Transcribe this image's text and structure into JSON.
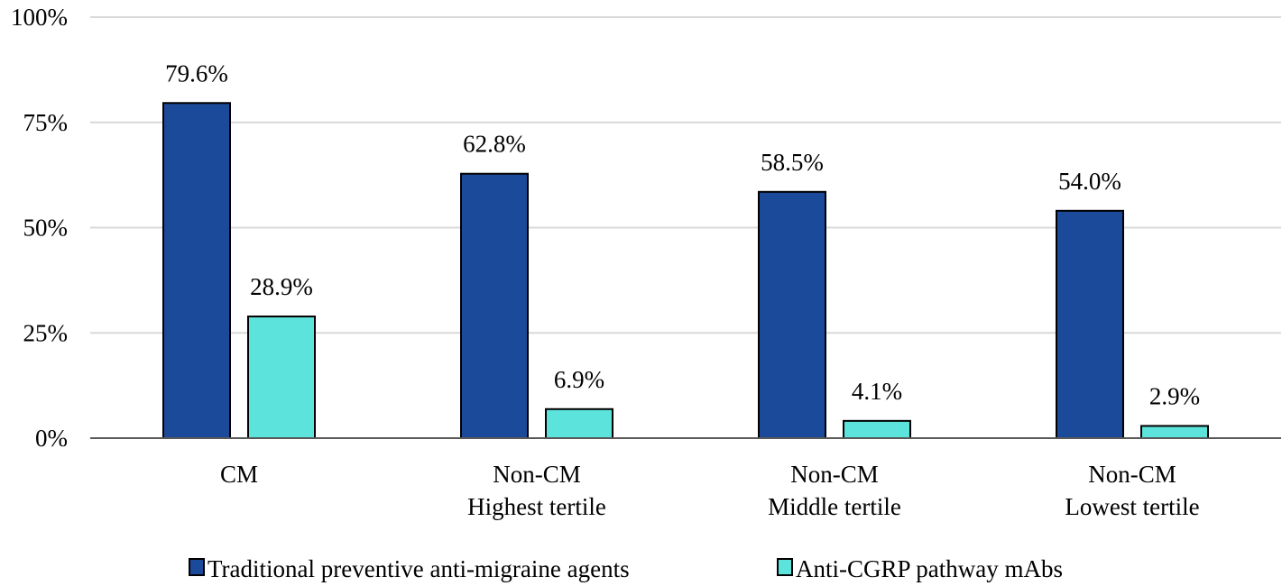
{
  "chart_data": {
    "type": "bar",
    "title": "",
    "xlabel": "",
    "ylabel": "",
    "ylim": [
      0,
      100
    ],
    "y_ticks": [
      0,
      25,
      50,
      75,
      100
    ],
    "y_tick_labels": [
      "0%",
      "25%",
      "50%",
      "75%",
      "100%"
    ],
    "categories": [
      [
        "CM"
      ],
      [
        "Non-CM",
        "Highest tertile"
      ],
      [
        "Non-CM",
        "Middle tertile"
      ],
      [
        "Non-CM",
        "Lowest tertile"
      ]
    ],
    "series": [
      {
        "name": "Traditional preventive anti-migraine agents",
        "color": "#1c4a9a",
        "values": [
          79.6,
          62.8,
          58.5,
          54.0
        ],
        "labels": [
          "79.6%",
          "62.8%",
          "58.5%",
          "54.0%"
        ]
      },
      {
        "name": "Anti-CGRP pathway mAbs",
        "color": "#5ce3db",
        "values": [
          28.9,
          6.9,
          4.1,
          2.9
        ],
        "labels": [
          "28.9%",
          "6.9%",
          "4.1%",
          "2.9%"
        ]
      }
    ],
    "grid": true,
    "legend_position": "bottom"
  }
}
